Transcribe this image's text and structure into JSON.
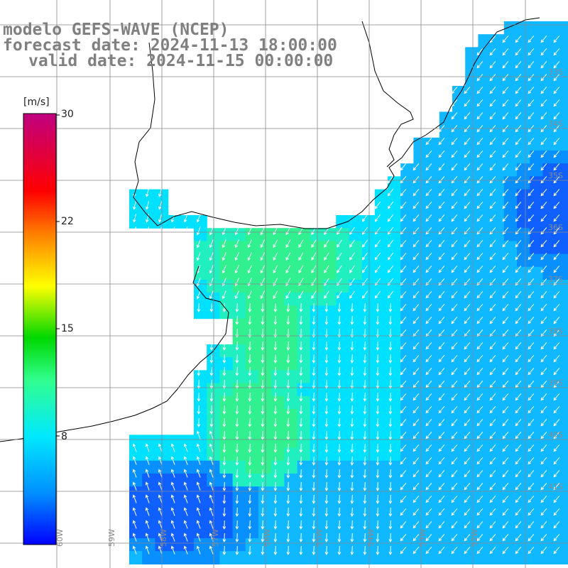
{
  "header": {
    "line1": "modelo GEFS-WAVE (NCEP)",
    "line2": "forecast date: 2024-11-13 18:00:00",
    "line3": "valid date: 2024-11-15 00:00:00"
  },
  "colorbar": {
    "unit": "[m/s]",
    "range": [
      0,
      30
    ],
    "ticks": [
      "30",
      "22",
      "15",
      "8"
    ],
    "gradient_stops": [
      "#0000ff",
      "#0090ff",
      "#00e8ff",
      "#30ff90",
      "#00d800",
      "#ffff00",
      "#ff8000",
      "#ff0000",
      "#c00080"
    ]
  },
  "map": {
    "lon_labels": [
      "60W",
      "59W",
      "58W",
      "57W",
      "56W",
      "55W",
      "54W",
      "53W",
      "52W"
    ],
    "lat_labels": [
      "33S",
      "34S",
      "35S",
      "36S",
      "37S",
      "38S",
      "39S",
      "40S",
      "41S"
    ]
  },
  "colors": {
    "land": "#ffffff",
    "coastline": "#000000",
    "grid": "#888888",
    "arrows": "#ffffff",
    "title_text": "#808080"
  }
}
